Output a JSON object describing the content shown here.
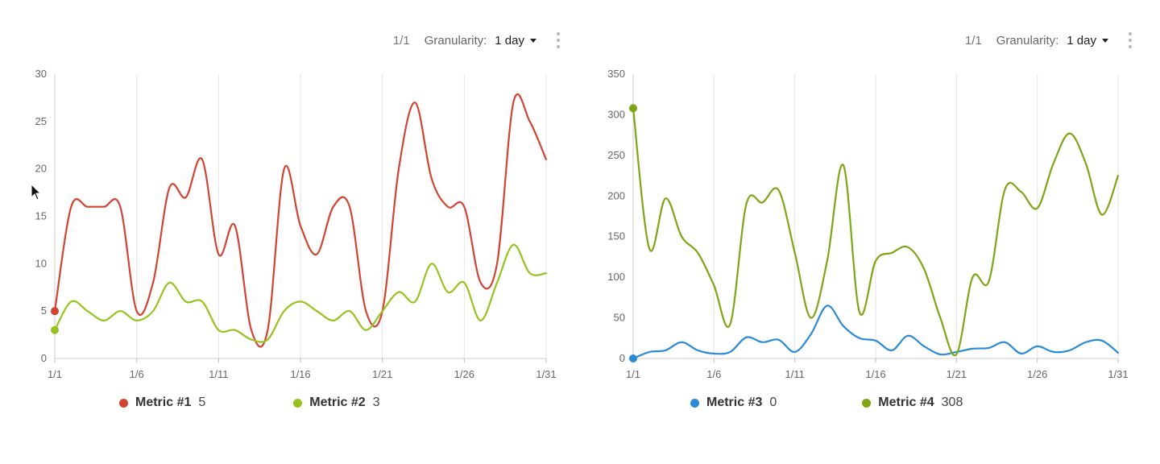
{
  "panels": [
    {
      "toolbar": {
        "page": "1/1",
        "granularity_label": "Granularity:",
        "granularity_value": "1 day"
      },
      "legend": [
        {
          "name": "Metric #1",
          "value": "5",
          "color": "#d24332"
        },
        {
          "name": "Metric #2",
          "value": "3",
          "color": "#97c31f"
        }
      ]
    },
    {
      "toolbar": {
        "page": "1/1",
        "granularity_label": "Granularity:",
        "granularity_value": "1 day"
      },
      "legend": [
        {
          "name": "Metric #3",
          "value": "0",
          "color": "#2b8ad6"
        },
        {
          "name": "Metric #4",
          "value": "308",
          "color": "#7ea514"
        }
      ]
    }
  ],
  "chart_data": [
    {
      "type": "line",
      "x": [
        "1/1",
        "1/2",
        "1/3",
        "1/4",
        "1/5",
        "1/6",
        "1/7",
        "1/8",
        "1/9",
        "1/10",
        "1/11",
        "1/12",
        "1/13",
        "1/14",
        "1/15",
        "1/16",
        "1/17",
        "1/18",
        "1/19",
        "1/20",
        "1/21",
        "1/22",
        "1/23",
        "1/24",
        "1/25",
        "1/26",
        "1/27",
        "1/28",
        "1/29",
        "1/30",
        "1/31"
      ],
      "xticks": [
        "1/1",
        "1/6",
        "1/11",
        "1/16",
        "1/21",
        "1/26",
        "1/31"
      ],
      "ylim": [
        0,
        30
      ],
      "yticks": [
        "0",
        "5",
        "10",
        "15",
        "20",
        "25",
        "30"
      ],
      "grid": "vertical",
      "series": [
        {
          "name": "Metric #1",
          "color": "#d24332",
          "values": [
            5,
            16,
            16,
            16,
            16,
            5,
            8,
            18,
            17,
            21,
            11,
            14,
            3,
            3,
            20,
            14,
            11,
            16,
            16,
            5,
            5,
            20,
            27,
            19,
            16,
            16,
            8,
            10,
            27,
            25,
            21
          ]
        },
        {
          "name": "Metric #2",
          "color": "#97c31f",
          "values": [
            3,
            6,
            5,
            4,
            5,
            4,
            5,
            8,
            6,
            6,
            3,
            3,
            2,
            2,
            5,
            6,
            5,
            4,
            5,
            3,
            5,
            7,
            6,
            10,
            7,
            8,
            4,
            8,
            12,
            9,
            9
          ]
        }
      ]
    },
    {
      "type": "line",
      "x": [
        "1/1",
        "1/2",
        "1/3",
        "1/4",
        "1/5",
        "1/6",
        "1/7",
        "1/8",
        "1/9",
        "1/10",
        "1/11",
        "1/12",
        "1/13",
        "1/14",
        "1/15",
        "1/16",
        "1/17",
        "1/18",
        "1/19",
        "1/20",
        "1/21",
        "1/22",
        "1/23",
        "1/24",
        "1/25",
        "1/26",
        "1/27",
        "1/28",
        "1/29",
        "1/30",
        "1/31"
      ],
      "xticks": [
        "1/1",
        "1/6",
        "1/11",
        "1/16",
        "1/21",
        "1/26",
        "1/31"
      ],
      "ylim": [
        0,
        350
      ],
      "yticks": [
        "0",
        "50",
        "100",
        "150",
        "200",
        "250",
        "300",
        "350"
      ],
      "grid": "vertical",
      "series": [
        {
          "name": "Metric #3",
          "color": "#2b8ad6",
          "values": [
            0,
            8,
            10,
            20,
            10,
            6,
            8,
            26,
            20,
            23,
            8,
            30,
            65,
            40,
            25,
            22,
            10,
            28,
            15,
            5,
            8,
            12,
            13,
            20,
            6,
            15,
            8,
            10,
            20,
            22,
            7
          ]
        },
        {
          "name": "Metric #4",
          "color": "#7ea514",
          "values": [
            308,
            135,
            197,
            150,
            130,
            90,
            42,
            190,
            192,
            207,
            130,
            50,
            120,
            238,
            57,
            120,
            130,
            137,
            110,
            50,
            5,
            100,
            95,
            208,
            205,
            185,
            240,
            277,
            240,
            177,
            225
          ]
        }
      ]
    }
  ]
}
